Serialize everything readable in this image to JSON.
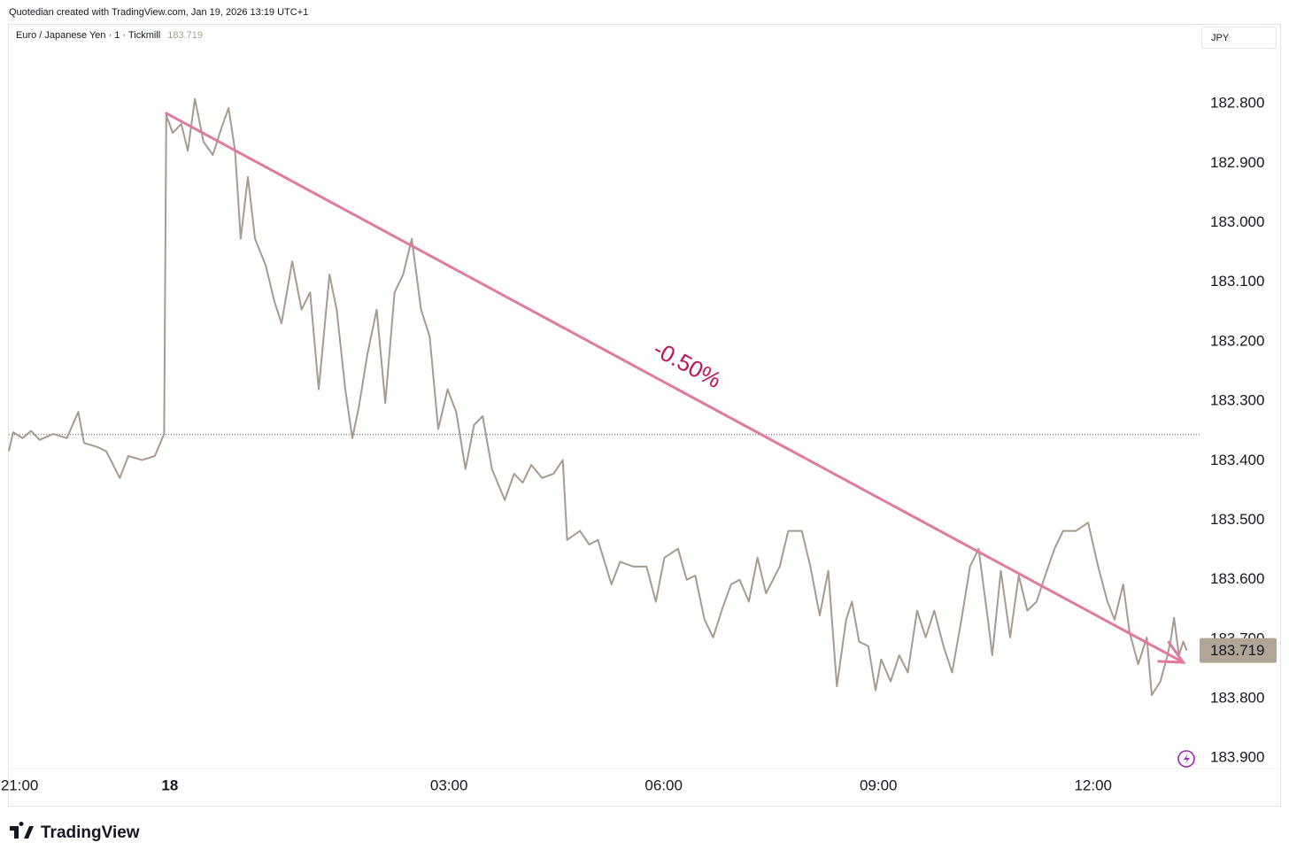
{
  "header": {
    "credit": "Quotedian created with TradingView.com, Jan 19, 2026 13:19 UTC+1",
    "brand": "TradingView"
  },
  "chart_data": {
    "type": "line",
    "symbol": "Euro / Japanese Yen · 1 · Tickmill",
    "currency": "JPY",
    "last_value": 183.719,
    "reference_line": 183.356,
    "inverted": true,
    "xlim": [
      -0.15,
      16.5
    ],
    "xticks": [
      {
        "value": 0,
        "label": "21:00"
      },
      {
        "value": 2.1,
        "label": "18"
      },
      {
        "value": 6,
        "label": "03:00"
      },
      {
        "value": 9,
        "label": "06:00"
      },
      {
        "value": 12,
        "label": "09:00"
      },
      {
        "value": 15,
        "label": "12:00"
      }
    ],
    "ylim": [
      183.98,
      182.7
    ],
    "yticks": [
      {
        "value": 182.8,
        "label": "182.800"
      },
      {
        "value": 182.9,
        "label": "182.900"
      },
      {
        "value": 183.0,
        "label": "183.000"
      },
      {
        "value": 183.1,
        "label": "183.100"
      },
      {
        "value": 183.2,
        "label": "183.200"
      },
      {
        "value": 183.3,
        "label": "183.300"
      },
      {
        "value": 183.4,
        "label": "183.400"
      },
      {
        "value": 183.5,
        "label": "183.500"
      },
      {
        "value": 183.6,
        "label": "183.600"
      },
      {
        "value": 183.7,
        "label": "183.700"
      },
      {
        "value": 183.8,
        "label": "183.800"
      },
      {
        "value": 183.9,
        "label": "183.900"
      }
    ],
    "annotation": {
      "text": "-0.50%",
      "from": [
        2.05,
        182.816
      ],
      "to": [
        16.26,
        183.739
      ],
      "color": "#e07a9f",
      "text_color": "#c0144c"
    },
    "series": [
      {
        "name": "EURJPY",
        "color": "#a69b8e",
        "x": [
          -0.15,
          -0.09,
          0.04,
          0.16,
          0.28,
          0.47,
          0.66,
          0.82,
          0.9,
          1.09,
          1.21,
          1.4,
          1.52,
          1.71,
          1.89,
          2.02,
          2.05,
          2.14,
          2.26,
          2.35,
          2.45,
          2.57,
          2.7,
          2.82,
          2.92,
          3.01,
          3.09,
          3.19,
          3.29,
          3.44,
          3.56,
          3.66,
          3.81,
          3.94,
          4.06,
          4.18,
          4.33,
          4.43,
          4.55,
          4.65,
          4.74,
          4.86,
          4.99,
          5.11,
          5.24,
          5.36,
          5.48,
          5.61,
          5.73,
          5.85,
          5.98,
          6.1,
          6.23,
          6.35,
          6.47,
          6.6,
          6.78,
          6.91,
          7.03,
          7.15,
          7.3,
          7.46,
          7.59,
          7.65,
          7.83,
          7.96,
          8.08,
          8.27,
          8.39,
          8.58,
          8.76,
          8.89,
          9.01,
          9.2,
          9.32,
          9.44,
          9.57,
          9.69,
          9.81,
          9.94,
          10.06,
          10.19,
          10.31,
          10.43,
          10.62,
          10.74,
          10.93,
          11.05,
          11.18,
          11.3,
          11.42,
          11.55,
          11.63,
          11.73,
          11.86,
          11.96,
          12.04,
          12.17,
          12.29,
          12.41,
          12.54,
          12.66,
          12.78,
          12.91,
          13.03,
          13.16,
          13.28,
          13.4,
          13.53,
          13.59,
          13.71,
          13.84,
          13.96,
          14.08,
          14.21,
          14.33,
          14.46,
          14.58,
          14.76,
          14.93,
          15.07,
          15.2,
          15.3,
          15.42,
          15.51,
          15.63,
          15.75,
          15.82,
          15.94,
          16.04,
          16.09,
          16.13,
          16.2,
          16.26,
          16.31
        ],
        "values": [
          183.384,
          183.352,
          183.362,
          183.35,
          183.365,
          183.355,
          183.362,
          183.318,
          183.37,
          183.377,
          183.384,
          183.429,
          183.392,
          183.399,
          183.392,
          183.355,
          182.819,
          182.849,
          182.834,
          182.879,
          182.792,
          182.864,
          182.886,
          182.841,
          182.807,
          182.879,
          183.027,
          182.923,
          183.027,
          183.072,
          183.132,
          183.169,
          183.065,
          183.146,
          183.117,
          183.28,
          183.087,
          183.146,
          183.28,
          183.362,
          183.31,
          183.221,
          183.146,
          183.303,
          183.117,
          183.087,
          183.027,
          183.146,
          183.191,
          183.347,
          183.28,
          183.318,
          183.414,
          183.34,
          183.325,
          183.414,
          183.466,
          183.422,
          183.437,
          183.407,
          183.429,
          183.422,
          183.399,
          183.533,
          183.518,
          183.541,
          183.533,
          183.608,
          183.57,
          183.578,
          183.578,
          183.637,
          183.563,
          183.548,
          183.6,
          183.593,
          183.667,
          183.697,
          183.652,
          183.608,
          183.6,
          183.637,
          183.563,
          183.623,
          183.578,
          183.518,
          183.518,
          183.578,
          183.66,
          183.585,
          183.779,
          183.667,
          183.637,
          183.704,
          183.712,
          183.786,
          183.734,
          183.771,
          183.727,
          183.756,
          183.652,
          183.697,
          183.652,
          183.712,
          183.756,
          183.667,
          183.578,
          183.548,
          183.667,
          183.727,
          183.585,
          183.697,
          183.593,
          183.652,
          183.637,
          183.593,
          183.548,
          183.518,
          183.518,
          183.504,
          183.578,
          183.637,
          183.667,
          183.608,
          183.689,
          183.742,
          183.697,
          183.794,
          183.771,
          183.727,
          183.697,
          183.664,
          183.727,
          183.704,
          183.719
        ]
      }
    ]
  }
}
